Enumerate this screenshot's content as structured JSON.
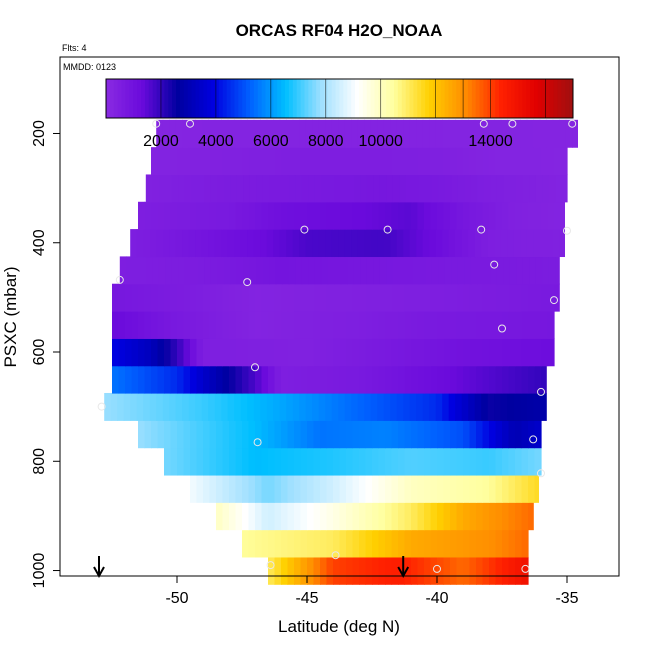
{
  "chart_data": {
    "type": "heatmap",
    "title": "ORCAS RF04 H2O_NOAA",
    "annotations": [
      "Flts: 4",
      "MMDD: 0123"
    ],
    "xlabel": "Latitude (deg N)",
    "ylabel": "PSXC (mbar)",
    "xlim": [
      -54.5,
      -33
    ],
    "ylim": [
      1010,
      60
    ],
    "x_ticks": [
      -50,
      -45,
      -40,
      -35
    ],
    "y_ticks": [
      200,
      400,
      600,
      800,
      1000
    ],
    "colorbar": {
      "min": 0,
      "max": 17000,
      "ticks": [
        2000,
        4000,
        6000,
        8000,
        10000,
        14000
      ],
      "colors": [
        "#8a2be2",
        "#6a0adc",
        "#0000a0",
        "#0000e0",
        "#0060ff",
        "#00bfff",
        "#a0e0ff",
        "#ffffff",
        "#ffffa0",
        "#ffd000",
        "#ff8c00",
        "#ff2000",
        "#e00000",
        "#a01010"
      ]
    },
    "rows": [
      {
        "p": 1000,
        "x0": -46.5,
        "x1": -36.5,
        "stops": [
          [
            -46.5,
            11000
          ],
          [
            -44,
            14000
          ],
          [
            -41.5,
            14500
          ],
          [
            -39,
            13500
          ],
          [
            -36.5,
            15000
          ]
        ]
      },
      {
        "p": 950,
        "x0": -47.5,
        "x1": -36.5,
        "stops": [
          [
            -47.5,
            10500
          ],
          [
            -44,
            11000
          ],
          [
            -41,
            12500
          ],
          [
            -38,
            13000
          ],
          [
            -36.5,
            13500
          ]
        ]
      },
      {
        "p": 900,
        "x0": -48.5,
        "x1": -36.3,
        "stops": [
          [
            -48.5,
            10000
          ],
          [
            -46.5,
            8500
          ],
          [
            -44,
            9500
          ],
          [
            -41,
            11000
          ],
          [
            -39,
            12500
          ],
          [
            -36.3,
            13500
          ]
        ]
      },
      {
        "p": 850,
        "x0": -49.5,
        "x1": -36.1,
        "stops": [
          [
            -49.5,
            9000
          ],
          [
            -46.5,
            7500
          ],
          [
            -44,
            8500
          ],
          [
            -41,
            10000
          ],
          [
            -38,
            10500
          ],
          [
            -36.1,
            11500
          ]
        ]
      },
      {
        "p": 800,
        "x0": -50.5,
        "x1": -36,
        "stops": [
          [
            -50.5,
            7500
          ],
          [
            -47,
            6500
          ],
          [
            -44,
            6800
          ],
          [
            -41,
            7200
          ],
          [
            -38,
            7000
          ],
          [
            -36,
            7500
          ]
        ]
      },
      {
        "p": 750,
        "x0": -51.5,
        "x1": -36,
        "stops": [
          [
            -51.5,
            7800
          ],
          [
            -47,
            6500
          ],
          [
            -44.5,
            5500
          ],
          [
            -42,
            5700
          ],
          [
            -39,
            5000
          ],
          [
            -37,
            3000
          ],
          [
            -36,
            3500
          ]
        ]
      },
      {
        "p": 700,
        "x0": -52.8,
        "x1": -35.8,
        "stops": [
          [
            -52.8,
            7800
          ],
          [
            -49,
            7000
          ],
          [
            -46,
            6200
          ],
          [
            -43,
            5300
          ],
          [
            -40,
            4500
          ],
          [
            -38,
            2500
          ],
          [
            -35.8,
            2800
          ]
        ]
      },
      {
        "p": 650,
        "x0": -52.5,
        "x1": -35.8,
        "stops": [
          [
            -52.5,
            5500
          ],
          [
            -50,
            4500
          ],
          [
            -48.5,
            3000
          ],
          [
            -47,
            1700
          ],
          [
            -46,
            500
          ],
          [
            -43,
            700
          ],
          [
            -40,
            1200
          ],
          [
            -38,
            1600
          ],
          [
            -35.8,
            2000
          ]
        ]
      },
      {
        "p": 600,
        "x0": -52.5,
        "x1": -35.5,
        "stops": [
          [
            -52.5,
            4000
          ],
          [
            -51,
            3200
          ],
          [
            -50,
            2000
          ],
          [
            -49,
            500
          ],
          [
            -45,
            400
          ],
          [
            -42,
            700
          ],
          [
            -39,
            1000
          ],
          [
            -35.5,
            1200
          ]
        ]
      },
      {
        "p": 550,
        "x0": -52.5,
        "x1": -35.5,
        "stops": [
          [
            -52.5,
            1300
          ],
          [
            -50,
            700
          ],
          [
            -47,
            300
          ],
          [
            -43,
            500
          ],
          [
            -40,
            700
          ],
          [
            -35.5,
            800
          ]
        ]
      },
      {
        "p": 500,
        "x0": -52.5,
        "x1": -35.3,
        "stops": [
          [
            -52.5,
            800
          ],
          [
            -50,
            600
          ],
          [
            -47,
            300
          ],
          [
            -44,
            400
          ],
          [
            -40,
            500
          ],
          [
            -35.3,
            700
          ]
        ]
      },
      {
        "p": 450,
        "x0": -52.2,
        "x1": -35.3,
        "stops": [
          [
            -52.2,
            500
          ],
          [
            -49,
            600
          ],
          [
            -46,
            900
          ],
          [
            -43,
            800
          ],
          [
            -40,
            700
          ],
          [
            -35.3,
            600
          ]
        ]
      },
      {
        "p": 400,
        "x0": -51.8,
        "x1": -35.1,
        "stops": [
          [
            -51.8,
            500
          ],
          [
            -49,
            900
          ],
          [
            -47,
            1200
          ],
          [
            -45,
            1700
          ],
          [
            -42,
            1800
          ],
          [
            -40,
            1200
          ],
          [
            -38,
            500
          ],
          [
            -35.1,
            400
          ]
        ]
      },
      {
        "p": 350,
        "x0": -51.5,
        "x1": -35.1,
        "stops": [
          [
            -51.5,
            500
          ],
          [
            -48,
            700
          ],
          [
            -46,
            1100
          ],
          [
            -43,
            1300
          ],
          [
            -41,
            1500
          ],
          [
            -39,
            800
          ],
          [
            -37,
            400
          ],
          [
            -35.1,
            300
          ]
        ]
      },
      {
        "p": 300,
        "x0": -51.2,
        "x1": -35,
        "stops": [
          [
            -51.2,
            400
          ],
          [
            -48,
            600
          ],
          [
            -45,
            700
          ],
          [
            -42,
            800
          ],
          [
            -40,
            700
          ],
          [
            -38,
            500
          ],
          [
            -35,
            300
          ]
        ]
      },
      {
        "p": 250,
        "x0": -51,
        "x1": -35,
        "stops": [
          [
            -51,
            300
          ],
          [
            -48,
            400
          ],
          [
            -45,
            500
          ],
          [
            -42,
            500
          ],
          [
            -40,
            450
          ],
          [
            -38,
            300
          ],
          [
            -35,
            250
          ]
        ]
      },
      {
        "p": 200,
        "x0": -50.8,
        "x1": -34.6,
        "stops": [
          [
            -50.8,
            250
          ],
          [
            -45,
            300
          ],
          [
            -40,
            300
          ],
          [
            -34.6,
            250
          ]
        ]
      }
    ],
    "points": [
      [
        -50.8,
        182
      ],
      [
        -49.5,
        182
      ],
      [
        -38.2,
        182
      ],
      [
        -37.1,
        182
      ],
      [
        -34.8,
        182
      ],
      [
        -45.1,
        376
      ],
      [
        -41.9,
        376
      ],
      [
        -38.3,
        376
      ],
      [
        -35,
        378
      ],
      [
        -37.8,
        440
      ],
      [
        -47.3,
        472
      ],
      [
        -52.2,
        468
      ],
      [
        -35.5,
        505
      ],
      [
        -37.5,
        557
      ],
      [
        -47,
        628
      ],
      [
        -36,
        673
      ],
      [
        -52.9,
        700
      ],
      [
        -46.9,
        765
      ],
      [
        -36.3,
        760
      ],
      [
        -36,
        822
      ],
      [
        -43.9,
        972
      ],
      [
        -46.4,
        990
      ],
      [
        -40,
        997
      ],
      [
        -36.6,
        997
      ]
    ],
    "arrows": [
      -53,
      -41.3
    ]
  }
}
